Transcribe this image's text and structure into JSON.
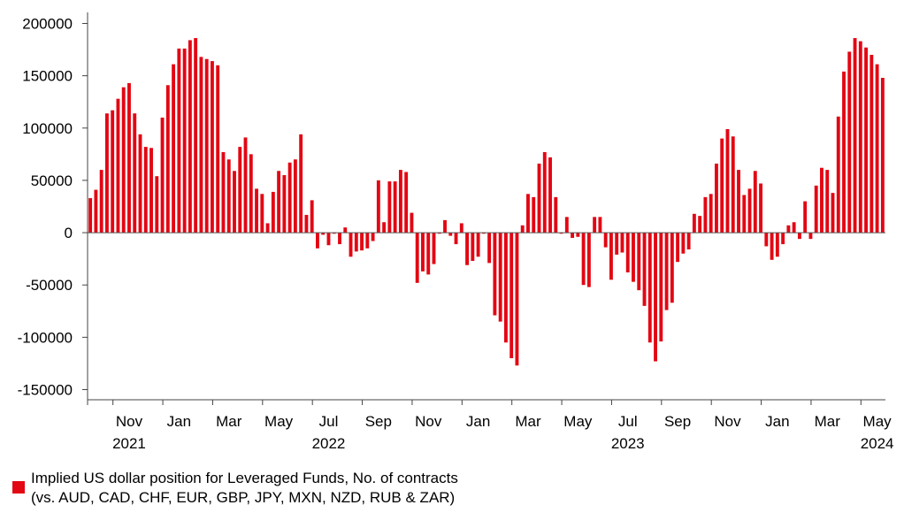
{
  "chart_data": {
    "type": "bar",
    "title": "",
    "xlabel": "",
    "ylabel": "",
    "ylim": [
      -165000,
      220000
    ],
    "y_ticks": [
      200000,
      150000,
      100000,
      50000,
      0,
      -50000,
      -100000,
      -150000
    ],
    "y_tick_labels": [
      "200000",
      "150000",
      "100000",
      "50000",
      "0",
      "-50000",
      "-100000",
      "-150000"
    ],
    "x_month_labels": [
      {
        "label": "Nov",
        "index": 7
      },
      {
        "label": "Jan",
        "index": 16
      },
      {
        "label": "Mar",
        "index": 25
      },
      {
        "label": "May",
        "index": 34
      },
      {
        "label": "Jul",
        "index": 43
      },
      {
        "label": "Sep",
        "index": 52
      },
      {
        "label": "Nov",
        "index": 61
      },
      {
        "label": "Jan",
        "index": 70
      },
      {
        "label": "Mar",
        "index": 79
      },
      {
        "label": "May",
        "index": 88
      },
      {
        "label": "Jul",
        "index": 97
      },
      {
        "label": "Sep",
        "index": 106
      },
      {
        "label": "Nov",
        "index": 115
      },
      {
        "label": "Jan",
        "index": 124
      },
      {
        "label": "Mar",
        "index": 133
      },
      {
        "label": "May",
        "index": 142
      }
    ],
    "x_year_labels": [
      {
        "label": "2021",
        "index": 7
      },
      {
        "label": "2022",
        "index": 43
      },
      {
        "label": "2023",
        "index": 97
      },
      {
        "label": "2024",
        "index": 142
      }
    ],
    "series": [
      {
        "name": "Implied US dollar position for Leveraged Funds, No. of contracts",
        "color": "#e30613",
        "values": [
          33000,
          41000,
          60000,
          114000,
          117000,
          128000,
          139000,
          143000,
          114000,
          94000,
          82000,
          81000,
          54000,
          110000,
          141000,
          161000,
          176000,
          176000,
          184000,
          186000,
          168000,
          166000,
          164000,
          160000,
          77000,
          70000,
          59000,
          82000,
          91000,
          75000,
          42000,
          37000,
          9000,
          39000,
          59000,
          55000,
          67000,
          70000,
          94000,
          17000,
          31000,
          -15000,
          -2000,
          -12000,
          -1000,
          -11000,
          5000,
          -23000,
          -18000,
          -17000,
          -15000,
          -8000,
          50000,
          10000,
          49000,
          49000,
          60000,
          58000,
          19000,
          -48000,
          -37000,
          -40000,
          -30000,
          -1000,
          12000,
          -3000,
          -11000,
          9000,
          -31000,
          -27000,
          -23000,
          -1000,
          -29000,
          -79000,
          -85000,
          -105000,
          -120000,
          -127000,
          7000,
          37000,
          34000,
          66000,
          77000,
          72000,
          34000,
          -1000,
          15000,
          -5000,
          -4000,
          -50000,
          -52000,
          15000,
          15000,
          -14000,
          -45000,
          -21000,
          -19000,
          -38000,
          -47000,
          -55000,
          -70000,
          -105000,
          -123000,
          -104000,
          -74000,
          -67000,
          -28000,
          -20000,
          -16000,
          18000,
          16000,
          34000,
          37000,
          66000,
          90000,
          99000,
          92000,
          60000,
          36000,
          42000,
          59000,
          47000,
          -13000,
          -26000,
          -23000,
          -11000,
          7000,
          10000,
          -6000,
          30000,
          -6000,
          45000,
          62000,
          60000,
          38000,
          111000,
          154000,
          173000,
          186000,
          183000,
          177000,
          170000,
          161000,
          148000
        ]
      }
    ],
    "grid": false,
    "legend": "bottom-left"
  },
  "legend": {
    "line1": "Implied US dollar position for Leveraged Funds, No. of contracts",
    "line2": "(vs. AUD, CAD, CHF, EUR, GBP, JPY, MXN, NZD, RUB & ZAR)",
    "color": "#e30613"
  }
}
